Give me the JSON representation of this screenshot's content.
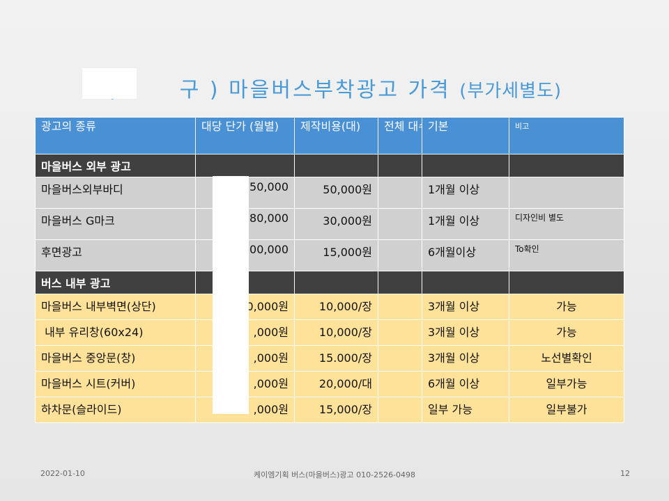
{
  "title": {
    "open_paren": "(",
    "main": "구 )  마을버스부착광고 가격",
    "note": "(부가세별도)"
  },
  "table": {
    "headers": [
      "광고의 종류",
      "대당 단가 (월별)",
      "제작비용(대)",
      "전체 대수",
      "기본",
      "비고"
    ],
    "sections": [
      {
        "label": "마을버스 외부 광고",
        "rows": [
          [
            "마을버스외부바디",
            "50,000",
            "50,000원",
            "",
            "1개월 이상",
            ""
          ],
          [
            "마을버스 G마크",
            "80,000",
            "30,000원",
            "",
            "1개월 이상",
            "디자인비 별도"
          ],
          [
            "후면광고",
            "00,000",
            "15,000원",
            "",
            "6개월이상",
            "To확인"
          ]
        ]
      },
      {
        "label": "버스 내부 광고",
        "rows": [
          [
            "마을버스 내부벽면(상단)",
            "0,000원",
            "10,000/장",
            "",
            "3개월 이상",
            "가능"
          ],
          [
            " 내부 유리창(60x24)",
            ",000원",
            "10,000/장",
            "",
            "3개월 이상",
            "가능"
          ],
          [
            "마을버스 중앙문(창)",
            ",000원",
            "15.000/장",
            "",
            "3개월 이상",
            "노선별확인"
          ],
          [
            "마을버스 시트(커버)",
            ",000원",
            "20,000/대",
            "",
            "6개월 이상",
            "일부가능"
          ],
          [
            "하차문(슬라이드)",
            ",000원",
            "15,000/장",
            "",
            "일부 가능",
            "일부불가"
          ]
        ]
      }
    ]
  },
  "footer": {
    "date": "2022-01-10",
    "center": "케이엠기획 버스(마을버스)광고 010-2526-0498",
    "page": "12"
  }
}
